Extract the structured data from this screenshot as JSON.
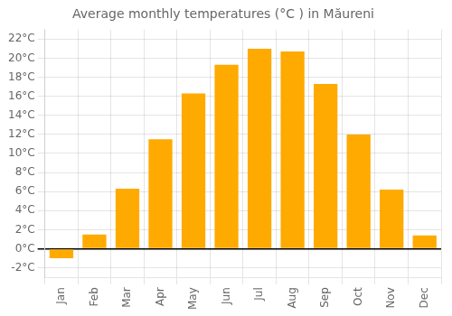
{
  "chart_data": {
    "type": "bar",
    "title": "Average monthly temperatures (°C ) in Măureni",
    "categories": [
      "Jan",
      "Feb",
      "Mar",
      "Apr",
      "May",
      "Jun",
      "Jul",
      "Aug",
      "Sep",
      "Oct",
      "Nov",
      "Dec"
    ],
    "values": [
      -1.0,
      1.5,
      6.3,
      11.5,
      16.3,
      19.3,
      21.0,
      20.7,
      17.3,
      12.0,
      6.2,
      1.4
    ],
    "color": "#FFAA00",
    "ylim": [
      -3,
      23
    ],
    "yticks": [
      {
        "value": -2,
        "label": "-2°C"
      },
      {
        "value": 0,
        "label": "0°C"
      },
      {
        "value": 2,
        "label": "2°C"
      },
      {
        "value": 4,
        "label": "4°C"
      },
      {
        "value": 6,
        "label": "6°C"
      },
      {
        "value": 8,
        "label": "8°C"
      },
      {
        "value": 10,
        "label": "10°C"
      },
      {
        "value": 12,
        "label": "12°C"
      },
      {
        "value": 14,
        "label": "14°C"
      },
      {
        "value": 16,
        "label": "16°C"
      },
      {
        "value": 18,
        "label": "18°C"
      },
      {
        "value": 20,
        "label": "20°C"
      },
      {
        "value": 22,
        "label": "22°C"
      }
    ],
    "grid": true
  }
}
